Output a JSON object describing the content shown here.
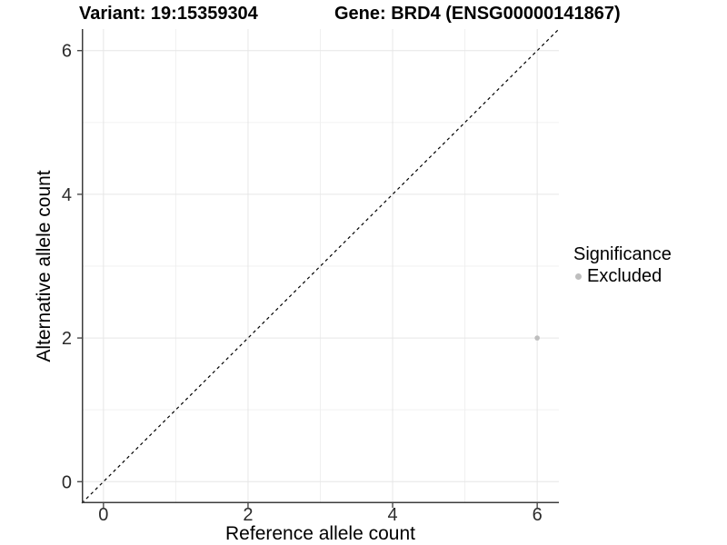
{
  "chart_data": {
    "type": "scatter",
    "titles": {
      "left": "Variant: 19:15359304",
      "right": "Gene: BRD4 (ENSG00000141867)"
    },
    "xlabel": "Reference allele count",
    "ylabel": "Alternative allele count",
    "xlim": [
      -0.3,
      6.3
    ],
    "ylim": [
      -0.3,
      6.3
    ],
    "x_ticks": [
      0,
      2,
      4,
      6
    ],
    "y_ticks": [
      0,
      2,
      4,
      6
    ],
    "x_minor_ticks": [
      1,
      3,
      5
    ],
    "y_minor_ticks": [
      1,
      3,
      5
    ],
    "grid": true,
    "reference_line": {
      "kind": "identity",
      "slope": 1,
      "intercept": 0,
      "style": "dashed",
      "color": "#000000"
    },
    "series": [
      {
        "name": "Excluded",
        "color": "#bebebe",
        "points": [
          {
            "x": 6,
            "y": 2
          }
        ]
      }
    ],
    "legend": {
      "title": "Significance",
      "position": "right",
      "entries": [
        {
          "label": "Excluded",
          "color": "#bebebe"
        }
      ]
    },
    "colors": {
      "background": "#ffffff",
      "grid_major": "#e6e6e6",
      "grid_minor": "#f0f0f0",
      "axis": "#3d3d3d",
      "tick_label": "#2b2b2b"
    }
  }
}
